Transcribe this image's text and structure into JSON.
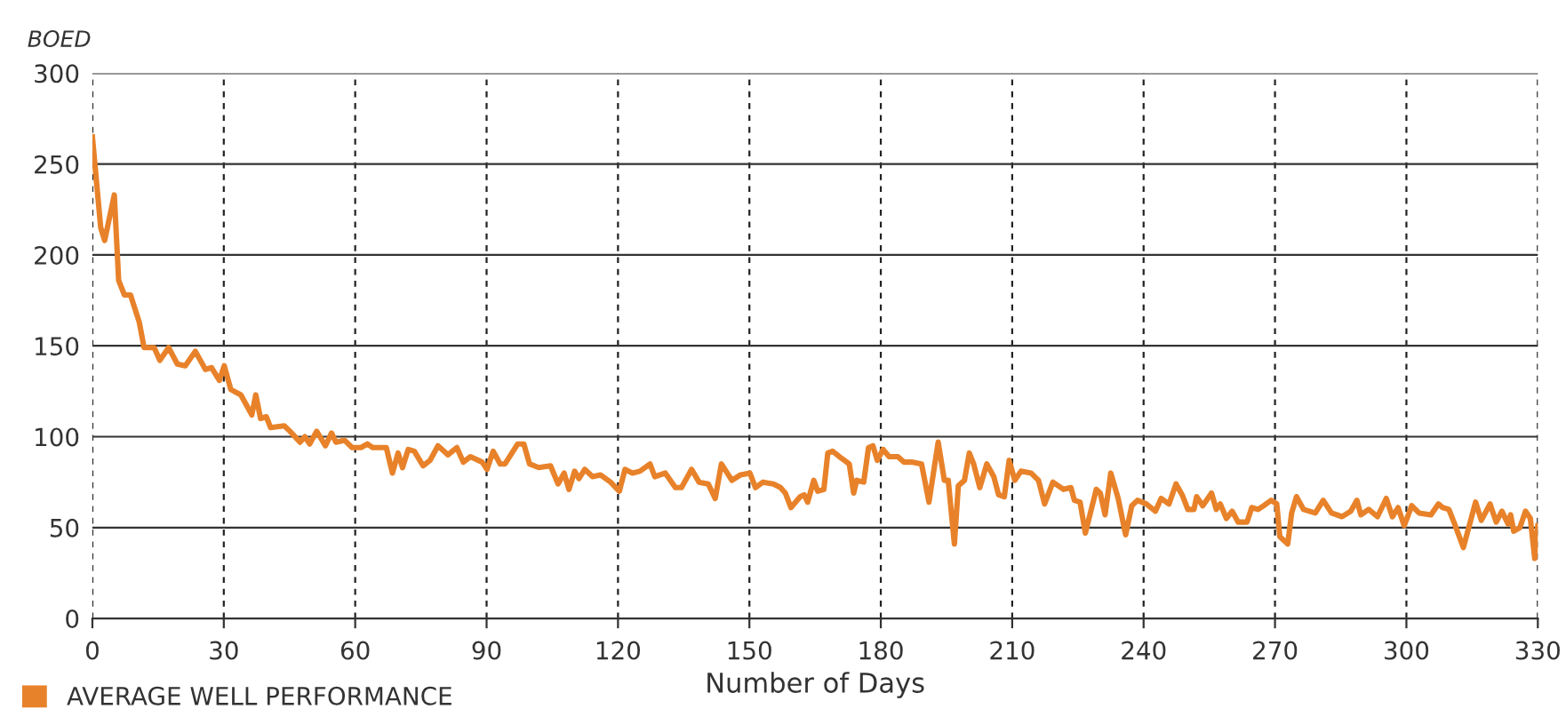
{
  "chart_data": {
    "type": "line",
    "ylabel": "BOED",
    "xlabel": "Number of Days",
    "xlim": [
      0,
      330
    ],
    "ylim": [
      0,
      300
    ],
    "xticks": [
      0,
      30,
      60,
      90,
      120,
      150,
      180,
      210,
      240,
      270,
      300,
      330
    ],
    "yticks": [
      0,
      50,
      100,
      150,
      200,
      250,
      300
    ],
    "grid": true,
    "legend": "bottom left",
    "marker": "none",
    "line_style": "solid",
    "series": [
      {
        "name": "AVERAGE WELL PERFORMANCE",
        "color": "#e8822a",
        "x": [
          0,
          1.9,
          2.8,
          5,
          6,
          7.3,
          8.7,
          10.7,
          11.8,
          14.1,
          15.4,
          17.4,
          19.4,
          21.2,
          23.5,
          25.8,
          27.2,
          29,
          30.1,
          31.6,
          33.9,
          36.4,
          37.3,
          38.4,
          39.7,
          40.7,
          43.8,
          45.1,
          47.4,
          48.5,
          49.6,
          51.2,
          53.2,
          54.6,
          55.6,
          57.6,
          59.3,
          61.3,
          62.8,
          64,
          67.1,
          68.5,
          69.8,
          70.8,
          72.1,
          73.5,
          75.5,
          77.1,
          78.9,
          81.2,
          83.2,
          84.7,
          86.3,
          89,
          90.1,
          91.5,
          93.1,
          94.2,
          97.1,
          98.5,
          99.8,
          101.9,
          104.6,
          106.3,
          107.7,
          108.8,
          110.1,
          111.1,
          112.4,
          114.2,
          116,
          118.3,
          120.3,
          121.6,
          123.3,
          125,
          127.3,
          128.4,
          130.8,
          133.1,
          134.5,
          136.8,
          138.5,
          140.6,
          142.2,
          143.6,
          146,
          148,
          150.1,
          151.4,
          153.1,
          155.5,
          157.1,
          158.2,
          159.5,
          161.6,
          162.5,
          163.3,
          164.7,
          165.6,
          167,
          167.9,
          169,
          171.1,
          172.8,
          173.8,
          174.5,
          176.1,
          177.2,
          178.2,
          179.2,
          180.5,
          181.9,
          183.9,
          185.3,
          187.3,
          189.3,
          191,
          193.1,
          194.5,
          195.4,
          196.8,
          197.7,
          199.1,
          200.2,
          201.2,
          202.6,
          204.2,
          205.8,
          206.9,
          208.2,
          209.3,
          210.6,
          212,
          214.3,
          216,
          217.4,
          219.3,
          221.7,
          223.4,
          224.2,
          225.5,
          226.7,
          229.2,
          230.1,
          231.2,
          232.5,
          234.2,
          235.9,
          237.3,
          238.6,
          240.6,
          242.7,
          244,
          245.8,
          247.4,
          248.8,
          250.1,
          251.5,
          252.1,
          253.5,
          255.5,
          256.6,
          257.5,
          258.9,
          260.2,
          261.6,
          263.6,
          264.7,
          266.1,
          267.4,
          269.1,
          270.4,
          271.1,
          272.9,
          273.8,
          274.9,
          276.5,
          279.2,
          281,
          282.9,
          285.3,
          287.3,
          288.7,
          289.6,
          291.4,
          293.4,
          295.4,
          296.8,
          298.1,
          299.5,
          301.2,
          302.9,
          305.6,
          307.3,
          308.3,
          309.7,
          311,
          313,
          315.8,
          317.1,
          319.1,
          320.5,
          321.8,
          323.2,
          323.8,
          324.5,
          325.9,
          327.2,
          328.3,
          329.3,
          330
        ],
        "values": [
          265,
          215,
          208,
          233,
          186,
          178,
          178,
          163,
          149,
          149,
          142,
          149,
          140,
          139,
          147,
          137,
          138,
          131,
          139,
          126,
          123,
          112,
          123,
          110,
          111,
          105,
          106,
          103,
          97,
          100,
          96,
          103,
          95,
          102,
          97,
          98,
          94,
          94,
          96,
          94,
          94,
          80,
          91,
          83,
          93,
          92,
          84,
          87,
          95,
          90,
          94,
          86,
          89,
          86,
          82,
          92,
          85,
          85,
          96,
          96,
          85,
          83,
          84,
          74,
          80,
          71,
          81,
          77,
          82,
          78,
          79,
          75,
          70,
          82,
          80,
          81,
          85,
          78,
          80,
          72,
          72,
          82,
          75,
          74,
          66,
          85,
          76,
          79,
          80,
          72,
          75,
          74,
          72,
          69,
          61,
          67,
          68,
          64,
          76,
          70,
          71,
          91,
          92,
          88,
          85,
          69,
          76,
          75,
          94,
          95,
          87,
          93,
          89,
          89,
          86,
          86,
          85,
          64,
          97,
          76,
          76,
          41,
          73,
          76,
          91,
          85,
          72,
          85,
          78,
          68,
          67,
          87,
          76,
          81,
          80,
          76,
          63,
          75,
          71,
          72,
          65,
          64,
          47,
          71,
          69,
          57,
          80,
          66,
          46,
          62,
          65,
          63,
          59,
          66,
          63,
          74,
          68,
          60,
          60,
          67,
          62,
          69,
          60,
          63,
          55,
          59,
          53,
          53,
          61,
          60,
          62,
          65,
          63,
          45,
          41,
          58,
          67,
          60,
          58,
          65,
          58,
          56,
          59,
          65,
          57,
          60,
          56,
          66,
          56,
          61,
          51,
          62,
          58,
          57,
          63,
          61,
          60,
          52,
          39,
          64,
          54,
          63,
          53,
          59,
          52,
          57,
          48,
          50,
          59,
          55,
          33,
          51
        ]
      }
    ]
  }
}
